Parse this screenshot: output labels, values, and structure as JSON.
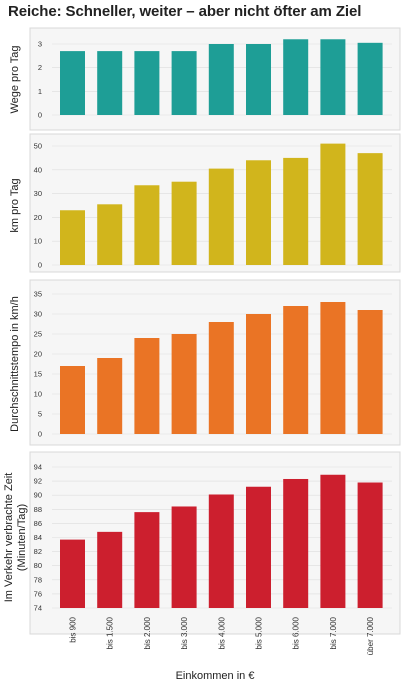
{
  "title": "Reiche: Schneller, weiter – aber nicht öfter am Ziel",
  "chart_data": [
    {
      "type": "bar",
      "ylabel": "Wege pro Tag",
      "ylim": [
        0,
        3
      ],
      "yticks": [
        0,
        1,
        2,
        3
      ],
      "color": "#1e9e96",
      "categories": [
        "bis 900",
        "bis 1.500",
        "bis 2.000",
        "bis 3.000",
        "bis 4.000",
        "bis 5.000",
        "bis 6.000",
        "bis 7.000",
        "über 7.000"
      ],
      "values": [
        2.7,
        2.7,
        2.7,
        2.7,
        3.0,
        3.0,
        3.2,
        3.2,
        3.05
      ]
    },
    {
      "type": "bar",
      "ylabel": "km pro Tag",
      "ylim": [
        0,
        50
      ],
      "yticks": [
        0,
        10,
        20,
        30,
        40,
        50
      ],
      "color": "#d1b51c",
      "categories": [
        "bis 900",
        "bis 1.500",
        "bis 2.000",
        "bis 3.000",
        "bis 4.000",
        "bis 5.000",
        "bis 6.000",
        "bis 7.000",
        "über 7.000"
      ],
      "values": [
        23,
        25.5,
        33.5,
        35,
        40.5,
        44,
        45,
        51,
        47
      ]
    },
    {
      "type": "bar",
      "ylabel": "Durchschnittstempo in km/h",
      "ylim": [
        0,
        35
      ],
      "yticks": [
        0,
        5,
        10,
        15,
        20,
        25,
        30,
        35
      ],
      "color": "#ea7425",
      "categories": [
        "bis 900",
        "bis 1.500",
        "bis 2.000",
        "bis 3.000",
        "bis 4.000",
        "bis 5.000",
        "bis 6.000",
        "bis 7.000",
        "über 7.000"
      ],
      "values": [
        17,
        19,
        24,
        25,
        28,
        30,
        32,
        33,
        31
      ]
    },
    {
      "type": "bar",
      "ylabel": "Im Verkehr verbrachte Zeit",
      "ylabel2": "(Minuten/Tag)",
      "ylim": [
        74,
        94
      ],
      "yticks": [
        74,
        76,
        78,
        80,
        82,
        84,
        86,
        88,
        90,
        92,
        94
      ],
      "color": "#cc1f2e",
      "categories": [
        "bis 900",
        "bis 1.500",
        "bis 2.000",
        "bis 3.000",
        "bis 4.000",
        "bis 5.000",
        "bis 6.000",
        "bis 7.000",
        "über 7.000"
      ],
      "values": [
        83.7,
        84.8,
        87.6,
        88.4,
        90.1,
        91.2,
        92.3,
        92.9,
        91.8
      ],
      "xlabel": "Einkommen in €"
    }
  ]
}
